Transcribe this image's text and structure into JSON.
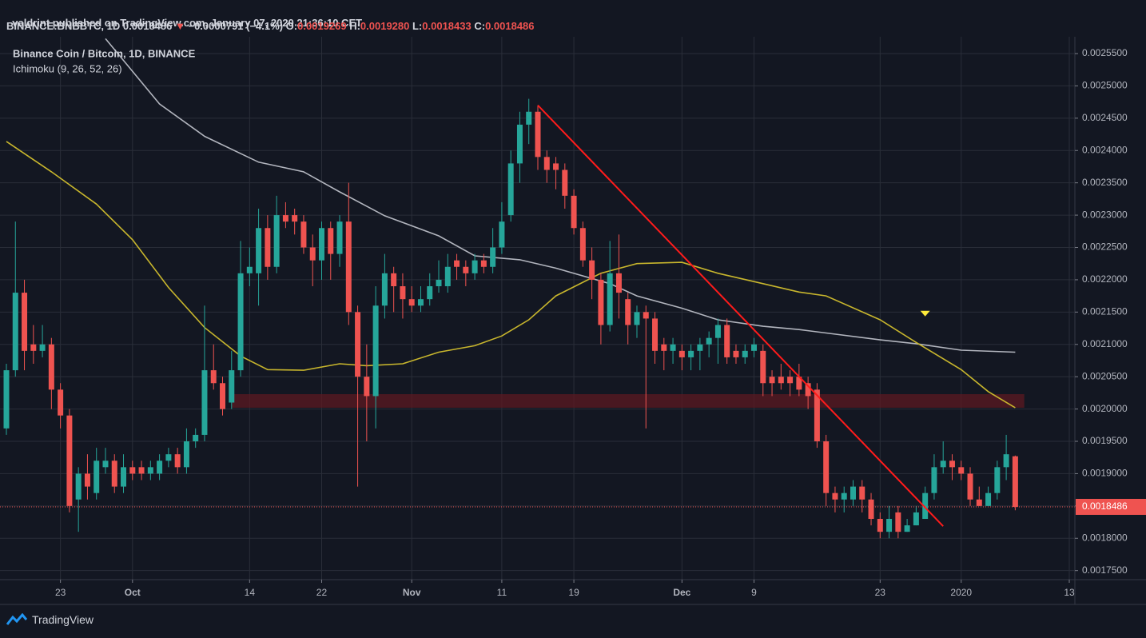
{
  "header": {
    "publisher": "valdrint published on TradingView.com, January 07, 2020 21:36:10 CET",
    "symbol": "BINANCE:BNBBTC, 1D",
    "last": "0.0018486",
    "change_arrow": "▼",
    "change": "−0.0000791 (−4.1%)",
    "o_label": "O:",
    "o": "0.0019269",
    "h_label": "H:",
    "h": "0.0019280",
    "l_label": "L:",
    "l": "0.0018433",
    "c_label": "C:",
    "c": "0.0018486"
  },
  "chart_data": {
    "type": "candlestick",
    "title": "Binance Coin / Bitcoin, 1D, BINANCE",
    "subtitle": "Ichimoku (9, 26, 52, 26)",
    "x": [
      "2019-09-17",
      "2019-09-18",
      "2019-09-19",
      "2019-09-20",
      "2019-09-21",
      "2019-09-22",
      "2019-09-23",
      "2019-09-24",
      "2019-09-25",
      "2019-09-26",
      "2019-09-27",
      "2019-09-28",
      "2019-09-29",
      "2019-09-30",
      "2019-10-01",
      "2019-10-02",
      "2019-10-03",
      "2019-10-04",
      "2019-10-05",
      "2019-10-06",
      "2019-10-07",
      "2019-10-08",
      "2019-10-09",
      "2019-10-10",
      "2019-10-11",
      "2019-10-12",
      "2019-10-13",
      "2019-10-14",
      "2019-10-15",
      "2019-10-16",
      "2019-10-17",
      "2019-10-18",
      "2019-10-19",
      "2019-10-20",
      "2019-10-21",
      "2019-10-22",
      "2019-10-23",
      "2019-10-24",
      "2019-10-25",
      "2019-10-26",
      "2019-10-27",
      "2019-10-28",
      "2019-10-29",
      "2019-10-30",
      "2019-10-31",
      "2019-11-01",
      "2019-11-02",
      "2019-11-03",
      "2019-11-04",
      "2019-11-05",
      "2019-11-06",
      "2019-11-07",
      "2019-11-08",
      "2019-11-09",
      "2019-11-10",
      "2019-11-11",
      "2019-11-12",
      "2019-11-13",
      "2019-11-14",
      "2019-11-15",
      "2019-11-16",
      "2019-11-17",
      "2019-11-18",
      "2019-11-19",
      "2019-11-20",
      "2019-11-21",
      "2019-11-22",
      "2019-11-23",
      "2019-11-24",
      "2019-11-25",
      "2019-11-26",
      "2019-11-27",
      "2019-11-28",
      "2019-11-29",
      "2019-11-30",
      "2019-12-01",
      "2019-12-02",
      "2019-12-03",
      "2019-12-04",
      "2019-12-05",
      "2019-12-06",
      "2019-12-07",
      "2019-12-08",
      "2019-12-09",
      "2019-12-10",
      "2019-12-11",
      "2019-12-12",
      "2019-12-13",
      "2019-12-14",
      "2019-12-15",
      "2019-12-16",
      "2019-12-17",
      "2019-12-18",
      "2019-12-19",
      "2019-12-20",
      "2019-12-21",
      "2019-12-22",
      "2019-12-23",
      "2019-12-24",
      "2019-12-25",
      "2019-12-26",
      "2019-12-27",
      "2019-12-28",
      "2019-12-29",
      "2019-12-30",
      "2019-12-31",
      "2020-01-01",
      "2020-01-02",
      "2020-01-03",
      "2020-01-04",
      "2020-01-05",
      "2020-01-06",
      "2020-01-07"
    ],
    "open": [
      0.00197,
      0.00206,
      0.00218,
      0.0021,
      0.00209,
      0.0021,
      0.00203,
      0.00199,
      0.00186,
      0.0019,
      0.00187,
      0.00191,
      0.00192,
      0.00188,
      0.00191,
      0.00191,
      0.0019,
      0.0019,
      0.00192,
      0.00193,
      0.00191,
      0.00195,
      0.00196,
      0.00206,
      0.00204,
      0.00201,
      0.00206,
      0.00221,
      0.00221,
      0.00228,
      0.00222,
      0.0023,
      0.0023,
      0.00229,
      0.00225,
      0.00223,
      0.00228,
      0.00224,
      0.00229,
      0.00215,
      0.00205,
      0.00202,
      0.00216,
      0.00221,
      0.00219,
      0.00217,
      0.00216,
      0.00217,
      0.00219,
      0.00219,
      0.00223,
      0.00222,
      0.00221,
      0.00223,
      0.00222,
      0.00225,
      0.0023,
      0.00238,
      0.00244,
      0.00246,
      0.00239,
      0.00238,
      0.00237,
      0.00233,
      0.00228,
      0.00223,
      0.0022,
      0.00213,
      0.00221,
      0.00217,
      0.00213,
      0.00215,
      0.00214,
      0.0021,
      0.00209,
      0.00209,
      0.00208,
      0.00209,
      0.0021,
      0.00211,
      0.00213,
      0.00209,
      0.00208,
      0.00209,
      0.00209,
      0.00205,
      0.00205,
      0.00205,
      0.00205,
      0.00204,
      0.00203,
      0.00195,
      0.00187,
      0.00186,
      0.00186,
      0.00188,
      0.00186,
      0.00183,
      0.00181,
      0.00184,
      0.00181,
      0.00182,
      0.00183,
      0.00187,
      0.00191,
      0.00192,
      0.00191,
      0.0019,
      0.00186,
      0.00185,
      0.00187,
      0.00191,
      0.0019269
    ],
    "high": [
      0.00207,
      0.00229,
      0.0022,
      0.00213,
      0.00213,
      0.00211,
      0.00204,
      0.002,
      0.00191,
      0.00193,
      0.00194,
      0.00194,
      0.00193,
      0.00193,
      0.00192,
      0.00192,
      0.00192,
      0.00193,
      0.00194,
      0.00194,
      0.00197,
      0.00197,
      0.00216,
      0.0021,
      0.00205,
      0.00209,
      0.00226,
      0.00225,
      0.00231,
      0.0023,
      0.00233,
      0.00232,
      0.00231,
      0.0023,
      0.00227,
      0.00229,
      0.00229,
      0.0023,
      0.00235,
      0.00216,
      0.0021,
      0.00219,
      0.00224,
      0.00222,
      0.00221,
      0.00219,
      0.00219,
      0.00221,
      0.00223,
      0.00224,
      0.00224,
      0.00223,
      0.00224,
      0.00224,
      0.00228,
      0.00232,
      0.0024,
      0.00246,
      0.00248,
      0.00247,
      0.0024,
      0.00239,
      0.00238,
      0.00234,
      0.00229,
      0.00225,
      0.00221,
      0.00226,
      0.00227,
      0.00218,
      0.00216,
      0.00216,
      0.00215,
      0.00211,
      0.00211,
      0.0021,
      0.0021,
      0.00211,
      0.00212,
      0.00214,
      0.00214,
      0.0021,
      0.0021,
      0.00211,
      0.0021,
      0.00206,
      0.00207,
      0.00206,
      0.00207,
      0.00205,
      0.00204,
      0.00196,
      0.00188,
      0.00188,
      0.00189,
      0.00189,
      0.00187,
      0.00184,
      0.00185,
      0.00185,
      0.00183,
      0.00185,
      0.00188,
      0.00193,
      0.00195,
      0.00193,
      0.00192,
      0.00191,
      0.00188,
      0.00188,
      0.00192,
      0.00196,
      0.001928
    ],
    "low": [
      0.00196,
      0.00205,
      0.00206,
      0.00207,
      0.00208,
      0.002,
      0.00197,
      0.00184,
      0.00181,
      0.00186,
      0.00186,
      0.0019,
      0.00187,
      0.00187,
      0.00189,
      0.00189,
      0.00189,
      0.00189,
      0.00191,
      0.0019,
      0.0019,
      0.00194,
      0.00195,
      0.00203,
      0.00199,
      0.002,
      0.00205,
      0.00219,
      0.00216,
      0.0022,
      0.00221,
      0.00228,
      0.00227,
      0.00224,
      0.00219,
      0.0022,
      0.0022,
      0.00222,
      0.00213,
      0.00188,
      0.00195,
      0.00197,
      0.00214,
      0.00215,
      0.00214,
      0.00215,
      0.00215,
      0.00216,
      0.00218,
      0.00218,
      0.0022,
      0.00219,
      0.0022,
      0.00221,
      0.00221,
      0.00224,
      0.00229,
      0.00235,
      0.00241,
      0.00237,
      0.00235,
      0.00234,
      0.00231,
      0.00227,
      0.00222,
      0.00217,
      0.0021,
      0.00212,
      0.00214,
      0.0021,
      0.00211,
      0.00197,
      0.00207,
      0.00206,
      0.00207,
      0.00206,
      0.00206,
      0.00206,
      0.00208,
      0.00207,
      0.00207,
      0.00207,
      0.00207,
      0.00208,
      0.00202,
      0.00202,
      0.00203,
      0.00202,
      0.00202,
      0.002,
      0.00194,
      0.00185,
      0.00184,
      0.00184,
      0.00185,
      0.00184,
      0.00182,
      0.0018,
      0.0018,
      0.0018,
      0.00181,
      0.00182,
      0.00183,
      0.00186,
      0.0019,
      0.00189,
      0.00189,
      0.00185,
      0.00185,
      0.00185,
      0.00186,
      0.00189,
      0.0018433
    ],
    "close": [
      0.00206,
      0.00218,
      0.00209,
      0.00209,
      0.0021,
      0.00203,
      0.00199,
      0.00185,
      0.0019,
      0.00188,
      0.00192,
      0.00192,
      0.00188,
      0.00191,
      0.0019,
      0.0019,
      0.00191,
      0.00192,
      0.00193,
      0.00191,
      0.00195,
      0.00196,
      0.00206,
      0.00204,
      0.002,
      0.00206,
      0.00221,
      0.00222,
      0.00228,
      0.00222,
      0.0023,
      0.00229,
      0.00229,
      0.00225,
      0.00223,
      0.00228,
      0.00224,
      0.00229,
      0.00215,
      0.00205,
      0.00202,
      0.00216,
      0.00221,
      0.00219,
      0.00217,
      0.00216,
      0.00217,
      0.00219,
      0.0022,
      0.00222,
      0.00222,
      0.00221,
      0.00223,
      0.00222,
      0.00225,
      0.00229,
      0.00238,
      0.00244,
      0.00246,
      0.00239,
      0.00237,
      0.00237,
      0.00233,
      0.00228,
      0.00223,
      0.0022,
      0.00213,
      0.00221,
      0.00218,
      0.00213,
      0.00215,
      0.00214,
      0.00209,
      0.00209,
      0.0021,
      0.00208,
      0.00209,
      0.0021,
      0.00211,
      0.00213,
      0.00208,
      0.00208,
      0.00209,
      0.0021,
      0.00204,
      0.00204,
      0.00204,
      0.00204,
      0.00203,
      0.00202,
      0.00195,
      0.00187,
      0.00186,
      0.00187,
      0.00188,
      0.00186,
      0.00183,
      0.00181,
      0.00183,
      0.00181,
      0.00182,
      0.00184,
      0.00187,
      0.00191,
      0.00192,
      0.00191,
      0.0019,
      0.00186,
      0.00185,
      0.00187,
      0.00191,
      0.00193,
      0.0018486
    ],
    "up_color": "#26a69a",
    "down_color": "#ef5350",
    "lines": [
      {
        "color": "#b2b5be",
        "x": [
          "2019-09-28",
          "2019-10-04",
          "2019-10-09",
          "2019-10-15",
          "2019-10-20",
          "2019-10-24",
          "2019-10-29",
          "2019-11-04",
          "2019-11-08",
          "2019-11-13",
          "2019-11-17",
          "2019-11-23",
          "2019-11-26",
          "2019-12-01",
          "2019-12-05",
          "2019-12-10",
          "2019-12-14",
          "2019-12-23",
          "2019-12-27",
          "2020-01-01",
          "2020-01-07"
        ],
        "values": [
          0.002573,
          0.002472,
          0.002422,
          0.002382,
          0.002367,
          0.002336,
          0.002299,
          0.002268,
          0.002237,
          0.002231,
          0.002218,
          0.002194,
          0.002175,
          0.002156,
          0.002138,
          0.002128,
          0.002123,
          0.002107,
          0.002101,
          0.002091,
          0.002088
        ]
      },
      {
        "color": "#c8b62d",
        "x": [
          "2019-09-17",
          "2019-09-22",
          "2019-09-27",
          "2019-10-01",
          "2019-10-05",
          "2019-10-09",
          "2019-10-13",
          "2019-10-16",
          "2019-10-20",
          "2019-10-24",
          "2019-10-27",
          "2019-10-31",
          "2019-11-04",
          "2019-11-08",
          "2019-11-11",
          "2019-11-14",
          "2019-11-17",
          "2019-11-22",
          "2019-11-26",
          "2019-12-01",
          "2019-12-05",
          "2019-12-10",
          "2019-12-14",
          "2019-12-17",
          "2019-12-23",
          "2019-12-27",
          "2020-01-01",
          "2020-01-04",
          "2020-01-07"
        ],
        "values": [
          0.002414,
          0.002367,
          0.002317,
          0.002262,
          0.002188,
          0.002126,
          0.002082,
          0.002061,
          0.00206,
          0.00207,
          0.002067,
          0.00207,
          0.002088,
          0.002098,
          0.002113,
          0.002138,
          0.002175,
          0.00221,
          0.002225,
          0.002227,
          0.00221,
          0.002194,
          0.002181,
          0.002175,
          0.002138,
          0.002103,
          0.002061,
          0.002027,
          0.002002
        ]
      }
    ],
    "trendline": {
      "color": "#ff1b1b",
      "x": [
        "2019-11-15",
        "2019-12-30"
      ],
      "values": [
        0.00247,
        0.0018186
      ]
    },
    "zone": {
      "color": "#5c1a22",
      "x": [
        "2019-10-12",
        "2020-01-08"
      ],
      "values": [
        0.002002,
        0.002023
      ]
    },
    "marker": {
      "color": "#ffeb3b",
      "x": "2019-12-28",
      "value": 0.002147
    },
    "ylim": [
      0.001736,
      0.0025735
    ],
    "yticks": [
      {
        "value": 0.00175,
        "label": "0.0017500"
      },
      {
        "value": 0.0018,
        "label": "0.0018000"
      },
      {
        "value": 0.00185,
        "label": "0.0018500"
      },
      {
        "value": 0.0019,
        "label": "0.0019000"
      },
      {
        "value": 0.00195,
        "label": "0.0019500"
      },
      {
        "value": 0.002,
        "label": "0.0020000"
      },
      {
        "value": 0.00205,
        "label": "0.0020500"
      },
      {
        "value": 0.0021,
        "label": "0.0021000"
      },
      {
        "value": 0.00215,
        "label": "0.0021500"
      },
      {
        "value": 0.0022,
        "label": "0.0022000"
      },
      {
        "value": 0.00225,
        "label": "0.0022500"
      },
      {
        "value": 0.0023,
        "label": "0.0023000"
      },
      {
        "value": 0.00235,
        "label": "0.0023500"
      },
      {
        "value": 0.0024,
        "label": "0.0024000"
      },
      {
        "value": 0.00245,
        "label": "0.0024500"
      },
      {
        "value": 0.0025,
        "label": "0.0025000"
      },
      {
        "value": 0.00255,
        "label": "0.0025500"
      }
    ],
    "xlim": [
      "2019-09-17",
      "2020-01-13"
    ],
    "xticks": [
      {
        "value": "2019-09-23",
        "label": "23"
      },
      {
        "value": "2019-10-01",
        "label": "Oct"
      },
      {
        "value": "2019-10-14",
        "label": "14"
      },
      {
        "value": "2019-10-22",
        "label": "22"
      },
      {
        "value": "2019-11-01",
        "label": "Nov"
      },
      {
        "value": "2019-11-11",
        "label": "11"
      },
      {
        "value": "2019-11-19",
        "label": "19"
      },
      {
        "value": "2019-12-01",
        "label": "Dec"
      },
      {
        "value": "2019-12-09",
        "label": "9"
      },
      {
        "value": "2019-12-23",
        "label": "23"
      },
      {
        "value": "2020-01-01",
        "label": "2020"
      },
      {
        "value": "2020-01-13",
        "label": "13"
      }
    ],
    "grid": true,
    "last_price_line": true
  },
  "footer": {
    "brand": "TradingView"
  }
}
